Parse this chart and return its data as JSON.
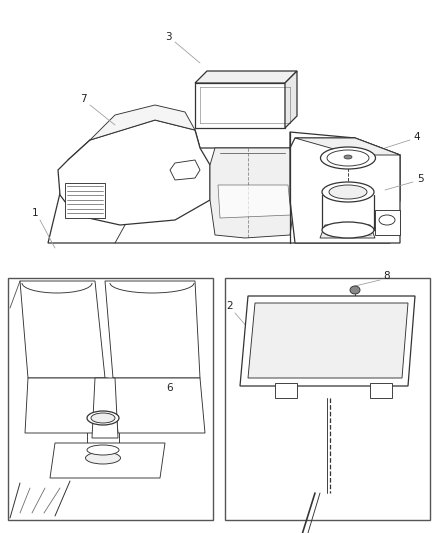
{
  "bg_color": "#ffffff",
  "line_color": "#333333",
  "leader_color": "#999999",
  "label_color": "#222222",
  "fig_width": 4.38,
  "fig_height": 5.33,
  "label_fontsize": 7.5
}
